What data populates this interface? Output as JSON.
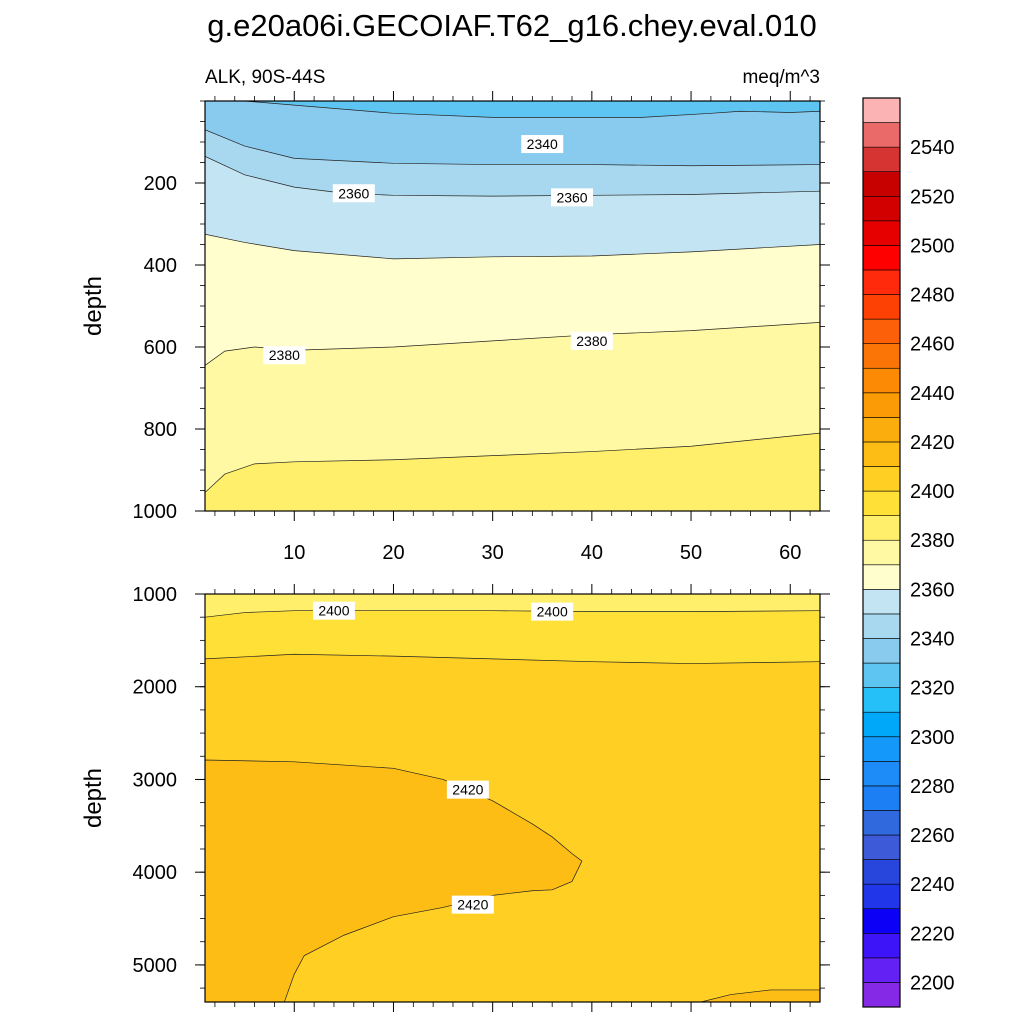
{
  "title": "g.e20a06i.GECOIAF.T62_g16.chey.eval.010",
  "subtitle_left": "ALK, 90S-44S",
  "subtitle_right": "meq/m^3",
  "chart_data": [
    {
      "type": "contour",
      "panel": "upper",
      "ylabel": "depth",
      "xlabel": "",
      "xlim": [
        1,
        63
      ],
      "ylim": [
        1000,
        0
      ],
      "x_ticks": [
        10,
        20,
        30,
        40,
        50,
        60
      ],
      "y_ticks": [
        200,
        400,
        600,
        800,
        1000
      ],
      "regions": [
        {
          "level_min": 2330,
          "level_max": 2340,
          "color": "#5ec5f3",
          "top": [
            [
              1,
              0
            ],
            [
              63,
              0
            ]
          ],
          "bottom": [
            [
              1,
              0
            ],
            [
              5,
              0
            ],
            [
              10,
              10
            ],
            [
              20,
              30
            ],
            [
              30,
              40
            ],
            [
              45,
              40
            ],
            [
              52,
              30
            ],
            [
              55,
              25
            ],
            [
              60,
              28
            ],
            [
              63,
              25
            ]
          ]
        },
        {
          "level_min": 2340,
          "level_max": 2350,
          "color": "#88cbee",
          "top": [
            [
              1,
              0
            ],
            [
              5,
              0
            ],
            [
              10,
              10
            ],
            [
              20,
              30
            ],
            [
              30,
              40
            ],
            [
              45,
              40
            ],
            [
              52,
              30
            ],
            [
              55,
              25
            ],
            [
              60,
              28
            ],
            [
              63,
              25
            ]
          ],
          "bottom": [
            [
              1,
              70
            ],
            [
              5,
              110
            ],
            [
              10,
              140
            ],
            [
              20,
              152
            ],
            [
              30,
              155
            ],
            [
              40,
              155
            ],
            [
              50,
              158
            ],
            [
              63,
              155
            ]
          ]
        },
        {
          "level_min": 2350,
          "level_max": 2360,
          "color": "#a8d8ef",
          "top": [
            [
              1,
              70
            ],
            [
              5,
              110
            ],
            [
              10,
              140
            ],
            [
              20,
              152
            ],
            [
              30,
              155
            ],
            [
              40,
              155
            ],
            [
              50,
              158
            ],
            [
              63,
              155
            ]
          ],
          "bottom": [
            [
              1,
              135
            ],
            [
              5,
              180
            ],
            [
              10,
              210
            ],
            [
              15,
              225
            ],
            [
              20,
              230
            ],
            [
              30,
              232
            ],
            [
              40,
              230
            ],
            [
              50,
              228
            ],
            [
              63,
              220
            ]
          ]
        },
        {
          "level_min": 2360,
          "level_max": 2370,
          "color": "#c3e4f2",
          "top": [
            [
              1,
              135
            ],
            [
              5,
              180
            ],
            [
              10,
              210
            ],
            [
              15,
              225
            ],
            [
              20,
              230
            ],
            [
              30,
              232
            ],
            [
              40,
              230
            ],
            [
              50,
              228
            ],
            [
              63,
              220
            ]
          ],
          "bottom": [
            [
              1,
              325
            ],
            [
              5,
              345
            ],
            [
              10,
              365
            ],
            [
              20,
              385
            ],
            [
              30,
              380
            ],
            [
              40,
              378
            ],
            [
              50,
              368
            ],
            [
              63,
              350
            ]
          ]
        },
        {
          "level_min": 2370,
          "level_max": 2380,
          "color": "#fffecc",
          "top": [
            [
              1,
              325
            ],
            [
              5,
              345
            ],
            [
              10,
              365
            ],
            [
              20,
              385
            ],
            [
              30,
              380
            ],
            [
              40,
              378
            ],
            [
              50,
              368
            ],
            [
              63,
              350
            ]
          ],
          "bottom": [
            [
              1,
              645
            ],
            [
              3,
              610
            ],
            [
              6,
              600
            ],
            [
              10,
              608
            ],
            [
              20,
              600
            ],
            [
              30,
              585
            ],
            [
              40,
              570
            ],
            [
              50,
              560
            ],
            [
              63,
              540
            ]
          ]
        },
        {
          "level_min": 2380,
          "level_max": 2390,
          "color": "#fff9a4",
          "top": [
            [
              1,
              645
            ],
            [
              3,
              610
            ],
            [
              6,
              600
            ],
            [
              10,
              608
            ],
            [
              20,
              600
            ],
            [
              30,
              585
            ],
            [
              40,
              570
            ],
            [
              50,
              560
            ],
            [
              63,
              540
            ]
          ],
          "bottom": [
            [
              1,
              955
            ],
            [
              3,
              910
            ],
            [
              6,
              885
            ],
            [
              10,
              880
            ],
            [
              20,
              875
            ],
            [
              30,
              865
            ],
            [
              40,
              855
            ],
            [
              50,
              842
            ],
            [
              63,
              810
            ]
          ]
        },
        {
          "level_min": 2390,
          "level_max": 2400,
          "color": "#ffef6b",
          "top": [
            [
              1,
              955
            ],
            [
              3,
              910
            ],
            [
              6,
              885
            ],
            [
              10,
              880
            ],
            [
              20,
              875
            ],
            [
              30,
              865
            ],
            [
              40,
              855
            ],
            [
              50,
              842
            ],
            [
              63,
              810
            ]
          ],
          "bottom": [
            [
              1,
              1000
            ],
            [
              63,
              1000
            ]
          ]
        }
      ],
      "contour_labels": [
        {
          "text": "2340",
          "x": 35,
          "y": 105
        },
        {
          "text": "2360",
          "x": 16,
          "y": 225
        },
        {
          "text": "2360",
          "x": 38,
          "y": 235
        },
        {
          "text": "2380",
          "x": 9,
          "y": 620
        },
        {
          "text": "2380",
          "x": 40,
          "y": 585
        }
      ]
    },
    {
      "type": "contour",
      "panel": "lower",
      "ylabel": "depth",
      "xlabel": "",
      "xlim": [
        1,
        63
      ],
      "ylim": [
        5400,
        1000
      ],
      "y_ticks": [
        1000,
        2000,
        3000,
        4000,
        5000
      ],
      "regions": [
        {
          "level_min": 2390,
          "level_max": 2400,
          "color": "#ffef6b",
          "top": [
            [
              1,
              1000
            ],
            [
              63,
              1000
            ]
          ],
          "bottom": [
            [
              1,
              1250
            ],
            [
              5,
              1200
            ],
            [
              10,
              1180
            ],
            [
              20,
              1180
            ],
            [
              30,
              1180
            ],
            [
              40,
              1190
            ],
            [
              50,
              1190
            ],
            [
              63,
              1180
            ]
          ]
        },
        {
          "level_min": 2400,
          "level_max": 2410,
          "color": "#ffe036",
          "top": [
            [
              1,
              1250
            ],
            [
              5,
              1200
            ],
            [
              10,
              1180
            ],
            [
              20,
              1180
            ],
            [
              30,
              1180
            ],
            [
              40,
              1190
            ],
            [
              50,
              1190
            ],
            [
              63,
              1180
            ]
          ],
          "bottom": [
            [
              1,
              1700
            ],
            [
              10,
              1650
            ],
            [
              20,
              1670
            ],
            [
              30,
              1700
            ],
            [
              40,
              1730
            ],
            [
              50,
              1750
            ],
            [
              63,
              1730
            ]
          ]
        },
        {
          "level_min": 2410,
          "level_max": 2420,
          "color": "#ffcf24",
          "top": [
            [
              1,
              1700
            ],
            [
              10,
              1650
            ],
            [
              20,
              1670
            ],
            [
              30,
              1700
            ],
            [
              40,
              1730
            ],
            [
              50,
              1750
            ],
            [
              63,
              1730
            ]
          ],
          "bottom": [
            [
              1,
              5400
            ],
            [
              63,
              5400
            ]
          ]
        },
        {
          "level_min": 2420,
          "level_max": 2430,
          "color": "#fdbd14",
          "polygon": [
            [
              1,
              2790
            ],
            [
              10,
              2810
            ],
            [
              20,
              2880
            ],
            [
              25,
              3000
            ],
            [
              30,
              3230
            ],
            [
              34,
              3480
            ],
            [
              36,
              3620
            ],
            [
              38,
              3800
            ],
            [
              39,
              3880
            ],
            [
              38,
              4100
            ],
            [
              36,
              4190
            ],
            [
              34,
              4200
            ],
            [
              30,
              4250
            ],
            [
              25,
              4380
            ],
            [
              20,
              4480
            ],
            [
              15,
              4680
            ],
            [
              11,
              4900
            ],
            [
              10,
              5100
            ],
            [
              9,
              5400
            ],
            [
              1,
              5400
            ]
          ]
        },
        {
          "level_min": 2420,
          "level_max": 2430,
          "color": "#fdbd14",
          "polygon": [
            [
              51,
              5400
            ],
            [
              54,
              5320
            ],
            [
              58,
              5270
            ],
            [
              63,
              5270
            ],
            [
              63,
              5400
            ]
          ]
        }
      ],
      "contour_labels": [
        {
          "text": "2400",
          "x": 14,
          "y": 1180
        },
        {
          "text": "2400",
          "x": 36,
          "y": 1190
        },
        {
          "text": "2420",
          "x": 27.5,
          "y": 3110
        },
        {
          "text": "2420",
          "x": 28,
          "y": 4350
        }
      ]
    },
    {
      "type": "colorbar",
      "levels": [
        2190,
        2200,
        2210,
        2220,
        2230,
        2240,
        2250,
        2260,
        2270,
        2280,
        2290,
        2300,
        2310,
        2320,
        2330,
        2340,
        2350,
        2360,
        2370,
        2380,
        2390,
        2400,
        2410,
        2420,
        2430,
        2440,
        2450,
        2460,
        2470,
        2480,
        2490,
        2500,
        2510,
        2520,
        2530,
        2540,
        2550,
        2560
      ],
      "colors": [
        "#8629e6",
        "#6421f3",
        "#3d14f8",
        "#0d00f7",
        "#2136e8",
        "#2846dc",
        "#3d5bd9",
        "#2f69dd",
        "#1c7ff3",
        "#1d8cf8",
        "#1498fa",
        "#00a8fa",
        "#25c0f7",
        "#5ec5f3",
        "#88cbee",
        "#a8d8ef",
        "#c3e4f2",
        "#fffecc",
        "#fff9a4",
        "#ffef6b",
        "#ffe036",
        "#ffcf24",
        "#fdbd14",
        "#fcad0e",
        "#fb9b06",
        "#fc8a04",
        "#fa7506",
        "#fc6008",
        "#fd4004",
        "#ff2a0c",
        "#ff0000",
        "#e60000",
        "#d30000",
        "#c70000",
        "#d63333",
        "#ea6a6a",
        "#fbb3b3"
      ],
      "labels": [
        "2200",
        "2220",
        "2240",
        "2260",
        "2280",
        "2300",
        "2320",
        "2340",
        "2360",
        "2380",
        "2400",
        "2420",
        "2440",
        "2460",
        "2480",
        "2500",
        "2520",
        "2540"
      ]
    }
  ]
}
